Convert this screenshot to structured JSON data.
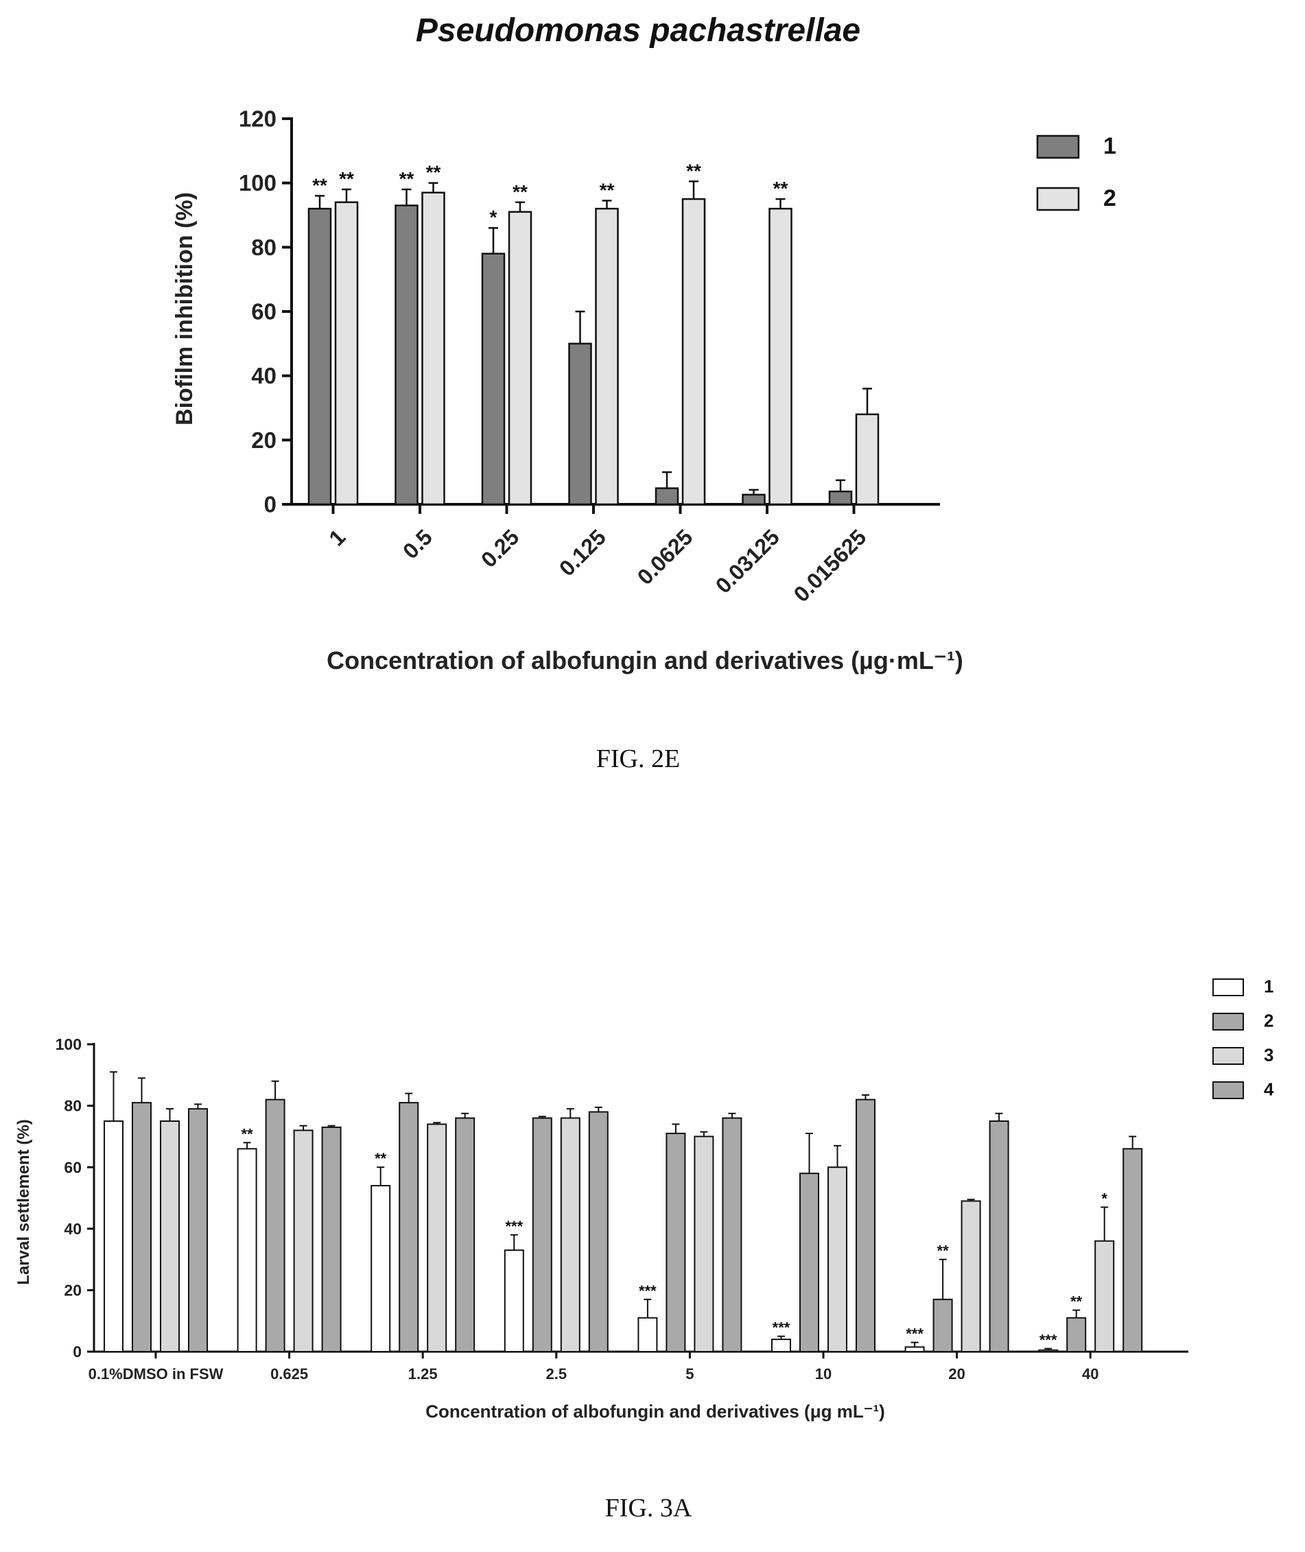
{
  "chart_data": [
    {
      "type": "bar",
      "title": "Pseudomonas pachastrellae",
      "xlabel": "Concentration of albofungin and derivatives (µg·mL⁻¹)",
      "ylabel": "Biofilm inhibition (%)",
      "ylim": [
        0,
        120
      ],
      "yticks": [
        0,
        20,
        40,
        60,
        80,
        100,
        120
      ],
      "categories": [
        "1",
        "0.5",
        "0.25",
        "0.125",
        "0.0625",
        "0.03125",
        "0.015625"
      ],
      "legend_position": "top-right",
      "grid": false,
      "series": [
        {
          "name": "1",
          "color": "#7f7f7f",
          "values": [
            92,
            93,
            78,
            50,
            5,
            3,
            4
          ],
          "errors": [
            4,
            5,
            8,
            10,
            5,
            1.5,
            3.5
          ],
          "significance": [
            "**",
            "**",
            "*",
            "",
            "",
            "",
            ""
          ]
        },
        {
          "name": "2",
          "color": "#e3e3e3",
          "values": [
            94,
            97,
            91,
            92,
            95,
            92,
            28
          ],
          "errors": [
            4,
            3,
            3,
            2.5,
            5.5,
            3,
            8
          ],
          "significance": [
            "**",
            "**",
            "**",
            "**",
            "**",
            "**",
            ""
          ]
        }
      ]
    },
    {
      "type": "bar",
      "title": "",
      "xlabel": "Concentration of albofungin and derivatives (μg mL⁻¹)",
      "ylabel": "Larval settlement (%)",
      "ylim": [
        0,
        100
      ],
      "yticks": [
        0,
        20,
        40,
        60,
        80,
        100
      ],
      "categories": [
        "0.1%DMSO in FSW",
        "0.625",
        "1.25",
        "2.5",
        "5",
        "10",
        "20",
        "40"
      ],
      "legend_position": "top-right",
      "grid": false,
      "series": [
        {
          "name": "1",
          "color": "#ffffff",
          "values": [
            75,
            66,
            54,
            33,
            11,
            4,
            1.5,
            0.5
          ],
          "errors": [
            16,
            2,
            6,
            5,
            6,
            1,
            1.5,
            0.5
          ],
          "significance": [
            "",
            "**",
            "**",
            "***",
            "***",
            "***",
            "***",
            "***"
          ]
        },
        {
          "name": "2",
          "color": "#a9a9a9",
          "values": [
            81,
            82,
            81,
            76,
            71,
            58,
            17,
            11
          ],
          "errors": [
            8,
            6,
            3,
            0.5,
            3,
            13,
            13,
            2.5
          ],
          "significance": [
            "",
            "",
            "",
            "",
            "",
            "",
            "**",
            "**"
          ]
        },
        {
          "name": "3",
          "color": "#d9d9d9",
          "values": [
            75,
            72,
            74,
            76,
            70,
            60,
            49,
            36
          ],
          "errors": [
            4,
            1.5,
            0.5,
            3,
            1.5,
            7,
            0.5,
            11
          ],
          "significance": [
            "",
            "",
            "",
            "",
            "",
            "",
            "",
            "*"
          ]
        },
        {
          "name": "4",
          "color": "#a9a9a9",
          "values": [
            79,
            73,
            76,
            78,
            76,
            82,
            75,
            66
          ],
          "errors": [
            1.5,
            0.5,
            1.5,
            1.5,
            1.5,
            1.5,
            2.5,
            4
          ],
          "significance": [
            "",
            "",
            "",
            "",
            "",
            "",
            "",
            ""
          ]
        }
      ]
    }
  ],
  "captions": {
    "fig2e": "FIG. 2E",
    "fig3a": "FIG. 3A"
  }
}
